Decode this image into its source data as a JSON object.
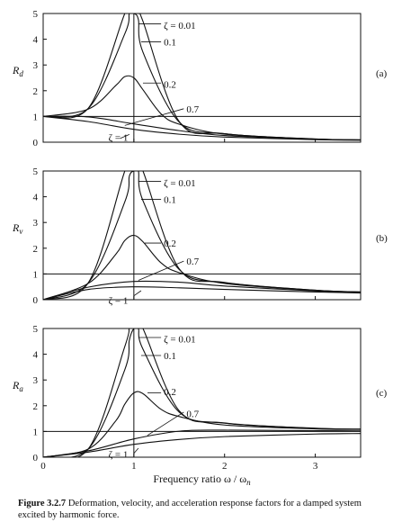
{
  "caption": {
    "label": "Figure 3.2.7",
    "text": "Deformation, velocity, and acceleration response factors for a damped system excited by harmonic force."
  },
  "chart_data": [
    {
      "type": "line",
      "id": "Rd",
      "ylabel": "R",
      "ylabel_sub": "d",
      "panel_label": "(a)",
      "xlim": [
        0,
        3.5
      ],
      "ylim": [
        0,
        5
      ],
      "xticks": [],
      "yticks": [
        0,
        1,
        2,
        3,
        4,
        5
      ],
      "reference_lines": [
        {
          "axis": "y",
          "value": 1
        },
        {
          "axis": "x",
          "value": 1
        }
      ],
      "series": [
        {
          "name": "ζ = 0.01",
          "x": [
            0,
            0.5,
            0.9,
            0.95,
            1.0,
            1.05,
            1.1,
            1.5,
            2,
            3,
            3.5
          ],
          "y": [
            1.0,
            1.33,
            5.0,
            5.0,
            5.0,
            5.0,
            4.7,
            0.8,
            0.33,
            0.125,
            0.09
          ]
        },
        {
          "name": "0.1",
          "x": [
            0,
            0.5,
            0.9,
            0.95,
            1.0,
            1.05,
            1.1,
            1.5,
            2,
            3,
            3.5
          ],
          "y": [
            1.0,
            1.32,
            4.21,
            5.0,
            5.0,
            4.76,
            3.5,
            0.78,
            0.33,
            0.125,
            0.09
          ]
        },
        {
          "name": "0.2",
          "x": [
            0,
            0.5,
            0.8,
            0.9,
            1.0,
            1.1,
            1.3,
            1.5,
            2,
            3,
            3.5
          ],
          "y": [
            1.0,
            1.29,
            2.2,
            2.55,
            2.5,
            2.04,
            1.1,
            0.7,
            0.31,
            0.12,
            0.09
          ]
        },
        {
          "name": "0.7",
          "x": [
            0,
            0.5,
            1.0,
            1.5,
            2,
            3,
            3.5
          ],
          "y": [
            1.0,
            0.98,
            0.71,
            0.45,
            0.26,
            0.11,
            0.08
          ]
        },
        {
          "name": "ζ = 1",
          "x": [
            0,
            0.5,
            1.0,
            1.5,
            2,
            3,
            3.5
          ],
          "y": [
            1.0,
            0.8,
            0.5,
            0.31,
            0.2,
            0.1,
            0.08
          ]
        }
      ]
    },
    {
      "type": "line",
      "id": "Rv",
      "ylabel": "R",
      "ylabel_sub": "v",
      "panel_label": "(b)",
      "xlim": [
        0,
        3.5
      ],
      "ylim": [
        0,
        5
      ],
      "xticks": [],
      "yticks": [
        0,
        1,
        2,
        3,
        4,
        5
      ],
      "reference_lines": [
        {
          "axis": "y",
          "value": 1
        },
        {
          "axis": "x",
          "value": 1
        }
      ],
      "series": [
        {
          "name": "ζ = 0.01",
          "x": [
            0,
            0.5,
            0.9,
            0.95,
            1.0,
            1.05,
            1.1,
            1.5,
            2,
            3,
            3.5
          ],
          "y": [
            0,
            0.67,
            5.0,
            5.0,
            5.0,
            5.0,
            5.0,
            1.2,
            0.67,
            0.37,
            0.3
          ]
        },
        {
          "name": "0.1",
          "x": [
            0,
            0.5,
            0.9,
            0.95,
            1.0,
            1.05,
            1.1,
            1.5,
            2,
            3,
            3.5
          ],
          "y": [
            0,
            0.66,
            3.8,
            4.8,
            5.0,
            5.0,
            3.85,
            1.17,
            0.66,
            0.37,
            0.3
          ]
        },
        {
          "name": "0.2",
          "x": [
            0,
            0.5,
            0.8,
            0.9,
            1.0,
            1.1,
            1.3,
            1.5,
            2,
            3,
            3.5
          ],
          "y": [
            0,
            0.64,
            1.76,
            2.3,
            2.5,
            2.25,
            1.43,
            1.05,
            0.63,
            0.36,
            0.3
          ]
        },
        {
          "name": "0.7",
          "x": [
            0,
            0.5,
            1.0,
            1.5,
            2,
            3,
            3.5
          ],
          "y": [
            0,
            0.49,
            0.71,
            0.68,
            0.53,
            0.34,
            0.29
          ]
        },
        {
          "name": "ζ = 1",
          "x": [
            0,
            0.5,
            1.0,
            1.5,
            2,
            3,
            3.5
          ],
          "y": [
            0,
            0.4,
            0.5,
            0.46,
            0.4,
            0.3,
            0.26
          ]
        }
      ]
    },
    {
      "type": "line",
      "id": "Ra",
      "ylabel": "R",
      "ylabel_sub": "a",
      "panel_label": "(c)",
      "xlim": [
        0,
        3.5
      ],
      "ylim": [
        0,
        5
      ],
      "xticks": [
        0,
        1,
        2,
        3
      ],
      "yticks": [
        0,
        1,
        2,
        3,
        4,
        5
      ],
      "xlabel": "Frequency ratio ω / ω",
      "xlabel_sub": "n",
      "reference_lines": [
        {
          "axis": "y",
          "value": 1
        },
        {
          "axis": "x",
          "value": 1
        }
      ],
      "series": [
        {
          "name": "ζ = 0.01",
          "x": [
            0,
            0.5,
            0.9,
            0.95,
            1.0,
            1.05,
            1.1,
            1.5,
            2,
            3,
            3.5
          ],
          "y": [
            0,
            0.33,
            4.3,
            5.0,
            5.0,
            5.0,
            5.0,
            1.8,
            1.33,
            1.125,
            1.09
          ]
        },
        {
          "name": "0.1",
          "x": [
            0,
            0.5,
            0.9,
            0.95,
            1.0,
            1.05,
            1.1,
            1.5,
            2,
            3,
            3.5
          ],
          "y": [
            0,
            0.33,
            3.4,
            4.55,
            5.0,
            5.0,
            4.2,
            1.75,
            1.32,
            1.12,
            1.09
          ]
        },
        {
          "name": "0.2",
          "x": [
            0,
            0.5,
            0.8,
            0.9,
            1.0,
            1.1,
            1.3,
            1.5,
            2,
            3,
            3.5
          ],
          "y": [
            0,
            0.32,
            1.41,
            2.06,
            2.5,
            2.47,
            1.86,
            1.58,
            1.25,
            1.1,
            1.08
          ]
        },
        {
          "name": "0.7",
          "x": [
            0,
            0.5,
            1.0,
            1.5,
            2,
            3,
            3.5
          ],
          "y": [
            0,
            0.25,
            0.71,
            1.01,
            1.05,
            1.03,
            1.02
          ]
        },
        {
          "name": "ζ = 1",
          "x": [
            0,
            0.5,
            1.0,
            1.5,
            2,
            3,
            3.5
          ],
          "y": [
            0,
            0.2,
            0.5,
            0.69,
            0.8,
            0.9,
            0.92
          ]
        }
      ]
    }
  ]
}
